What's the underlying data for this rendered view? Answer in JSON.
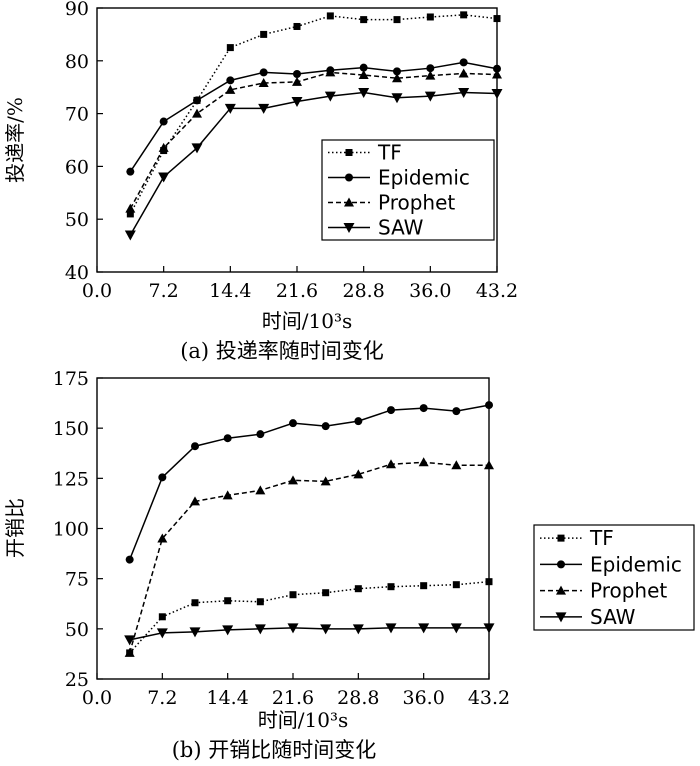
{
  "chart_data": [
    {
      "type": "line",
      "caption": "(a) 投递率随时间变化",
      "xlabel": "时间/10³s",
      "ylabel": "投递率/%",
      "xlim": [
        0,
        43.2
      ],
      "ylim": [
        40,
        90
      ],
      "xticks": [
        "0.0",
        "7.2",
        "14.4",
        "21.6",
        "28.8",
        "36.0",
        "43.2"
      ],
      "yticks": [
        "40",
        "50",
        "60",
        "70",
        "80",
        "90"
      ],
      "legend_position": "bottom-right",
      "x": [
        3.6,
        7.2,
        10.8,
        14.4,
        18.0,
        21.6,
        25.2,
        28.8,
        32.4,
        36.0,
        39.6,
        43.2
      ],
      "series": [
        {
          "name": "TF",
          "marker": "square",
          "line": "dotted",
          "values": [
            51.0,
            63.0,
            72.5,
            82.5,
            85.0,
            86.5,
            88.5,
            87.8,
            87.8,
            88.3,
            88.7,
            88.0
          ]
        },
        {
          "name": "Epidemic",
          "marker": "circle",
          "line": "solid",
          "values": [
            59.0,
            68.5,
            72.5,
            76.3,
            77.8,
            77.5,
            78.2,
            78.7,
            78.0,
            78.6,
            79.7,
            78.5
          ]
        },
        {
          "name": "Prophet",
          "marker": "triangle-up",
          "line": "dashed",
          "values": [
            52.0,
            63.5,
            70.0,
            74.5,
            75.8,
            76.0,
            77.8,
            77.3,
            76.7,
            77.2,
            77.6,
            77.4
          ]
        },
        {
          "name": "SAW",
          "marker": "triangle-down",
          "line": "solid",
          "values": [
            47.0,
            58.0,
            63.5,
            71.0,
            71.0,
            72.3,
            73.3,
            74.0,
            73.0,
            73.3,
            74.0,
            73.8
          ]
        }
      ]
    },
    {
      "type": "line",
      "caption": "(b) 开销比随时间变化",
      "xlabel": "时间/10³s",
      "ylabel": "开销比",
      "xlim": [
        0,
        43.2
      ],
      "ylim": [
        25,
        175
      ],
      "xticks": [
        "0.0",
        "7.2",
        "14.4",
        "21.6",
        "28.8",
        "36.0",
        "43.2"
      ],
      "yticks": [
        "25",
        "50",
        "75",
        "100",
        "125",
        "150",
        "175"
      ],
      "legend_position": "outside-right",
      "x": [
        3.6,
        7.2,
        10.8,
        14.4,
        18.0,
        21.6,
        25.2,
        28.8,
        32.4,
        36.0,
        39.6,
        43.2
      ],
      "series": [
        {
          "name": "TF",
          "marker": "square",
          "line": "dotted",
          "values": [
            38.0,
            56.0,
            63.0,
            64.0,
            63.5,
            67.0,
            68.0,
            70.0,
            71.0,
            71.5,
            72.0,
            73.5
          ]
        },
        {
          "name": "Epidemic",
          "marker": "circle",
          "line": "solid",
          "values": [
            84.5,
            125.5,
            141.0,
            145.0,
            147.0,
            152.5,
            151.0,
            153.5,
            159.0,
            160.0,
            158.5,
            161.5
          ]
        },
        {
          "name": "Prophet",
          "marker": "triangle-up",
          "line": "dashed",
          "values": [
            38.0,
            95.0,
            113.5,
            116.5,
            119.0,
            124.0,
            123.5,
            127.0,
            132.0,
            133.0,
            131.5,
            131.5
          ]
        },
        {
          "name": "SAW",
          "marker": "triangle-down",
          "line": "solid",
          "values": [
            44.5,
            48.0,
            48.5,
            49.5,
            50.0,
            50.5,
            50.0,
            50.0,
            50.5,
            50.5,
            50.5,
            50.5
          ]
        }
      ]
    }
  ]
}
